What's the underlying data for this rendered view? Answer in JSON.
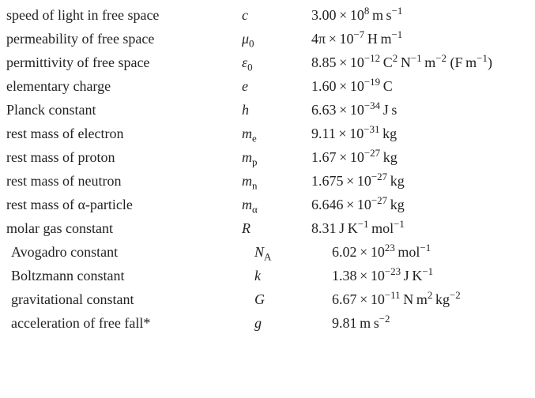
{
  "text_color": "#222222",
  "background_color": "#ffffff",
  "font_family": "Times New Roman, Georgia, serif",
  "base_fontsize_pt": 14,
  "constants_a": [
    {
      "name": "speed of light in free space",
      "sym_base": "c",
      "sym_sub": "",
      "value_html": "3.00&thinsp;×&thinsp;10<sup>8</sup>&thinsp;m&thinsp;s<sup>−1</sup>"
    },
    {
      "name": "permeability of free space",
      "sym_base": "μ",
      "sym_sub": "0",
      "value_html": "4π&thinsp;×&thinsp;10<sup>−7</sup>&thinsp;H&thinsp;m<sup>−1</sup>"
    },
    {
      "name": "permittivity of free space",
      "sym_base": "ε",
      "sym_sub": "0",
      "value_html": "8.85&thinsp;×&thinsp;10<sup>−12</sup>&thinsp;C<sup>2</sup>&thinsp;N<sup>−1</sup>&thinsp;m<sup>−2</sup> (F&thinsp;m<sup>−1</sup>)"
    },
    {
      "name": "elementary charge",
      "sym_base": "e",
      "sym_sub": "",
      "value_html": "1.60&thinsp;×&thinsp;10<sup>−19</sup>&thinsp;C"
    },
    {
      "name": "Planck constant",
      "sym_base": "h",
      "sym_sub": "",
      "value_html": "6.63&thinsp;×&thinsp;10<sup>−34</sup>&thinsp;J&thinsp;s"
    },
    {
      "name": "rest mass of electron",
      "sym_base": "m",
      "sym_sub": "e",
      "value_html": "9.11&thinsp;×&thinsp;10<sup>−31</sup>&thinsp;kg"
    },
    {
      "name": "rest mass of proton",
      "sym_base": "m",
      "sym_sub": "p",
      "value_html": "1.67&thinsp;×&thinsp;10<sup>−27</sup>&thinsp;kg"
    },
    {
      "name": "rest mass of neutron",
      "sym_base": "m",
      "sym_sub": "n",
      "value_html": "1.675&thinsp;×&thinsp;10<sup>−27</sup>&thinsp;kg"
    },
    {
      "name": "rest mass of α-particle",
      "sym_base": "m",
      "sym_sub": "α",
      "value_html": "6.646&thinsp;×&thinsp;10<sup>−27</sup>&thinsp;kg"
    },
    {
      "name": "molar gas constant",
      "sym_base": "R",
      "sym_sub": "",
      "value_html": "8.31&thinsp;J&thinsp;K<sup>−1</sup>&thinsp;mol<sup>−1</sup>"
    }
  ],
  "constants_b": [
    {
      "name": "Avogadro constant",
      "sym_base": "N",
      "sym_sub": "A",
      "value_html": "6.02&thinsp;×&thinsp;10<sup>23</sup>&thinsp;mol<sup>−1</sup>"
    },
    {
      "name": "Boltzmann constant",
      "sym_base": "k",
      "sym_sub": "",
      "value_html": "1.38&thinsp;×&thinsp;10<sup>−23</sup>&thinsp;J&thinsp;K<sup>−1</sup>"
    },
    {
      "name": "gravitational constant",
      "sym_base": "G",
      "sym_sub": "",
      "value_html": "6.67&thinsp;×&thinsp;10<sup>−11</sup>&thinsp;N&thinsp;m<sup>2</sup>&thinsp;kg<sup>−2</sup>"
    },
    {
      "name": "acceleration of free fall*",
      "sym_base": "g",
      "sym_sub": "",
      "value_html": "9.81&thinsp;m&thinsp;s<sup>−2</sup>"
    }
  ]
}
